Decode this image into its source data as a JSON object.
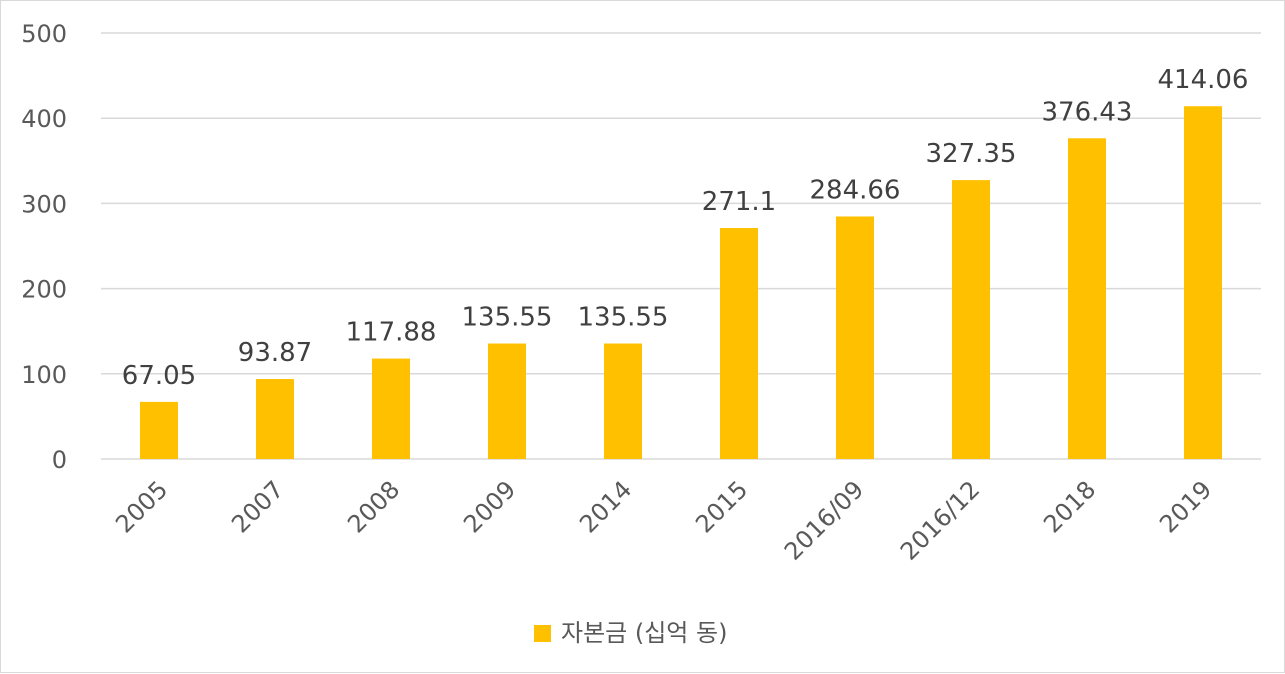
{
  "chart_data": {
    "type": "bar",
    "categories": [
      "2005",
      "2007",
      "2008",
      "2009",
      "2014",
      "2015",
      "2016/09",
      "2016/12",
      "2018",
      "2019"
    ],
    "series": [
      {
        "name": "자본금 (십억 동)",
        "values": [
          67.05,
          93.87,
          117.88,
          135.55,
          135.55,
          271.1,
          284.66,
          327.35,
          376.43,
          414.06
        ],
        "data_labels": [
          "67.05",
          "93.87",
          "117.88",
          "135.55",
          "135.55",
          "271.1",
          "284.66",
          "327.35",
          "376.43",
          "414.06"
        ],
        "color": "#FFC000"
      }
    ],
    "ylim": [
      0,
      500
    ],
    "yticks": [
      "0",
      "100",
      "200",
      "300",
      "400",
      "500"
    ],
    "grid": true,
    "legend": "bottom"
  },
  "colors": {
    "bar": "#FFC000",
    "grid": "#d9d9d9",
    "text": "#595959"
  }
}
